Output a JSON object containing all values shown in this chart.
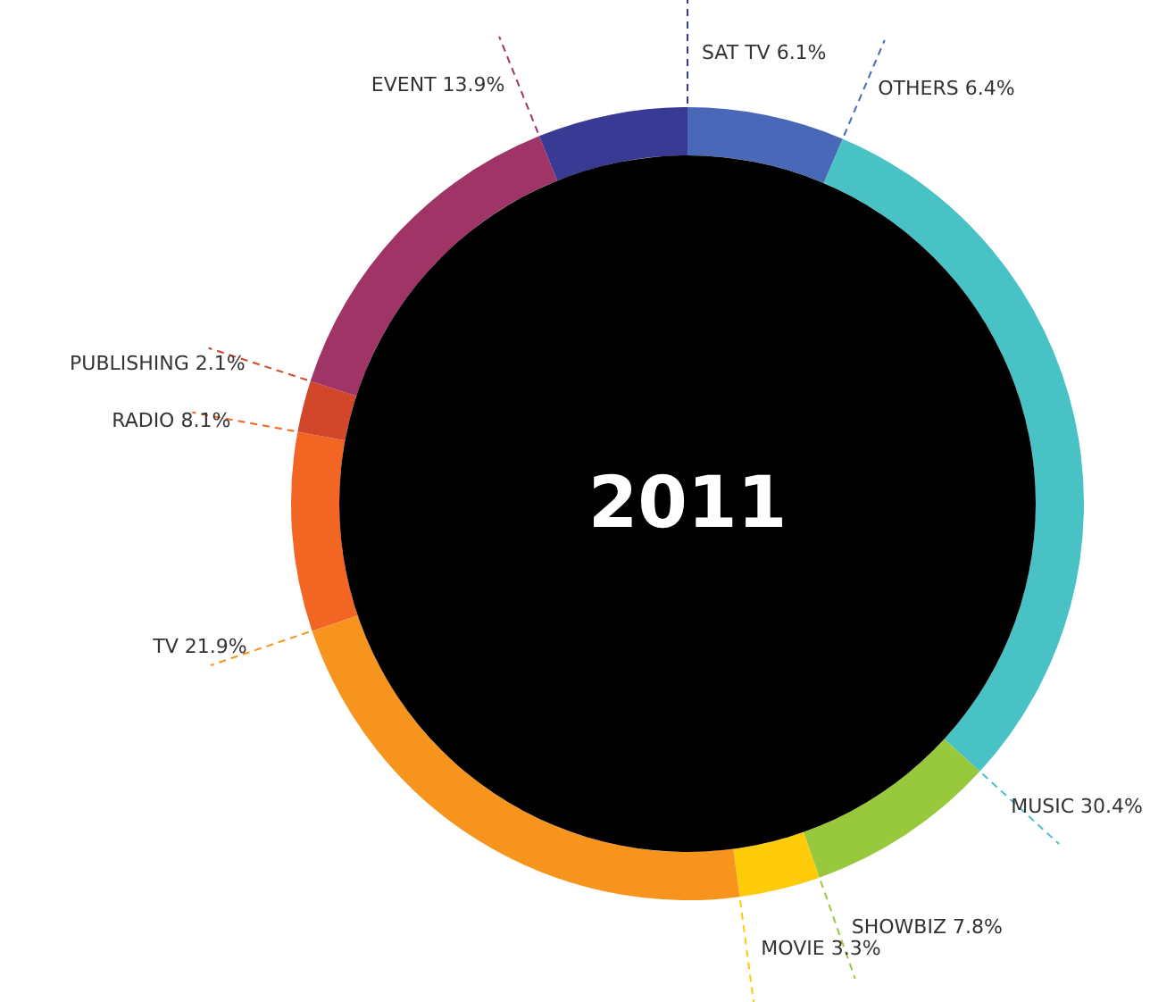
{
  "chart_data": {
    "type": "donut",
    "title": "2011",
    "categories": [
      "OTHERS",
      "MUSIC",
      "SHOWBIZ",
      "MOVIE",
      "TV",
      "RADIO",
      "PUBLISHING",
      "EVENT",
      "SAT TV"
    ],
    "values": [
      6.4,
      30.4,
      7.8,
      3.3,
      21.9,
      8.1,
      2.1,
      13.9,
      6.1
    ],
    "value_labels": [
      "6.4%",
      "30.4%",
      "7.8%",
      "3.3%",
      "21.9%",
      "8.1%",
      "2.1%",
      "13.9%",
      "6.1%"
    ],
    "colors": [
      "#4a68b8",
      "#48c2c5",
      "#98c93c",
      "#fdcb0a",
      "#f7941d",
      "#f26522",
      "#d2462a",
      "#a03467",
      "#393a94"
    ],
    "legend": false
  }
}
